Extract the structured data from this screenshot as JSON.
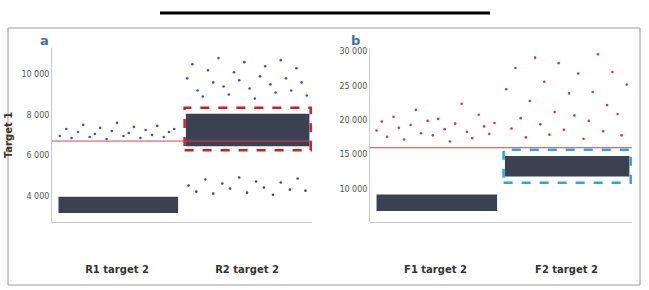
{
  "chart_data": [
    {
      "type": "scatter",
      "title": "a",
      "ylabel": "Target 1",
      "xlim": [
        0,
        2
      ],
      "xticks": [
        {
          "value": 0.5,
          "label": "R1 target 2"
        },
        {
          "value": 1.5,
          "label": "R2 target 2"
        }
      ],
      "ylim": [
        2700,
        11300
      ],
      "yticks": [
        {
          "value": 4000,
          "label": "4 000"
        },
        {
          "value": 6000,
          "label": "6 000"
        },
        {
          "value": 8000,
          "label": "8 000"
        },
        {
          "value": 10000,
          "label": "10 000"
        }
      ],
      "threshold": {
        "value": 6700,
        "color": "#d0464a"
      },
      "clusters": [
        {
          "x": [
            0.05,
            0.97
          ],
          "y": [
            3150,
            3950
          ],
          "color": "#3c4152"
        },
        {
          "x": [
            1.03,
            1.98
          ],
          "y": [
            6450,
            8050
          ],
          "color": "#3c4152"
        }
      ],
      "boxes": [
        {
          "x": [
            1.02,
            1.99
          ],
          "y": [
            6250,
            8350
          ],
          "color": "#e3171c",
          "line_style": "dashed"
        }
      ],
      "series": [
        {
          "color": "#3b52d9",
          "marker": "circle",
          "x": [
            0.06,
            0.11,
            0.15,
            0.2,
            0.24,
            0.29,
            0.33,
            0.37,
            0.42,
            0.46,
            0.5,
            0.55,
            0.59,
            0.63,
            0.68,
            0.72,
            0.77,
            0.81,
            0.86,
            0.9,
            0.94
          ],
          "values": [
            6950,
            7300,
            6850,
            7150,
            7500,
            6900,
            7050,
            7350,
            6800,
            7200,
            7600,
            6950,
            7100,
            7400,
            6850,
            7250,
            7000,
            7450,
            6900,
            7150,
            7300
          ]
        },
        {
          "color": "#3b52d9",
          "marker": "circle",
          "x": [
            1.04,
            1.08,
            1.12,
            1.16,
            1.2,
            1.24,
            1.28,
            1.32,
            1.36,
            1.4,
            1.44,
            1.48,
            1.52,
            1.56,
            1.6,
            1.64,
            1.68,
            1.72,
            1.76,
            1.8,
            1.84,
            1.88,
            1.92,
            1.96
          ],
          "values": [
            9800,
            10500,
            9200,
            8900,
            10200,
            9600,
            10800,
            9400,
            9000,
            10100,
            9700,
            10600,
            9300,
            8800,
            9900,
            10400,
            9500,
            9100,
            10700,
            9800,
            9200,
            10300,
            9600,
            8950
          ]
        },
        {
          "color": "#4a4f60",
          "marker": "circle",
          "x": [
            1.05,
            1.11,
            1.18,
            1.24,
            1.31,
            1.37,
            1.44,
            1.5,
            1.57,
            1.63,
            1.7,
            1.76,
            1.83,
            1.89,
            1.95
          ],
          "values": [
            4500,
            4200,
            4800,
            4100,
            4600,
            4350,
            4900,
            4150,
            4700,
            4400,
            4050,
            4650,
            4300,
            4850,
            4250
          ]
        }
      ]
    },
    {
      "type": "scatter",
      "title": "b",
      "xlim": [
        0,
        2
      ],
      "xticks": [
        {
          "value": 0.5,
          "label": "F1 target 2"
        },
        {
          "value": 1.5,
          "label": "F2 target 2"
        }
      ],
      "ylim": [
        5200,
        30500
      ],
      "yticks": [
        {
          "value": 10000,
          "label": "10 000"
        },
        {
          "value": 15000,
          "label": "15 000"
        },
        {
          "value": 20000,
          "label": "20 000"
        },
        {
          "value": 25000,
          "label": "25 000"
        },
        {
          "value": 30000,
          "label": "30 000"
        }
      ],
      "threshold": {
        "value": 16000,
        "color": "#d0464a"
      },
      "clusters": [
        {
          "x": [
            0.05,
            0.97
          ],
          "y": [
            6800,
            9200
          ],
          "color": "#3c4152"
        },
        {
          "x": [
            1.03,
            1.98
          ],
          "y": [
            11800,
            14800
          ],
          "color": "#3c4152"
        }
      ],
      "boxes": [
        {
          "x": [
            1.02,
            1.99
          ],
          "y": [
            10900,
            15700
          ],
          "color": "#2aa8df",
          "line_style": "dashed"
        }
      ],
      "series": [
        {
          "color": "#d93a3a",
          "marker": "circle",
          "x": [
            0.05,
            0.09,
            0.13,
            0.18,
            0.22,
            0.26,
            0.31,
            0.35,
            0.39,
            0.44,
            0.48,
            0.52,
            0.57,
            0.61,
            0.65,
            0.7,
            0.74,
            0.78,
            0.83,
            0.87,
            0.91,
            0.95
          ],
          "values": [
            18500,
            19800,
            17600,
            20500,
            18900,
            17200,
            19300,
            21500,
            18100,
            19900,
            17800,
            20200,
            18700,
            16900,
            19500,
            22400,
            18300,
            17400,
            20800,
            19100,
            18000,
            19600
          ]
        },
        {
          "color": "#d93a3a",
          "marker": "circle",
          "x": [
            1.04,
            1.08,
            1.11,
            1.15,
            1.19,
            1.22,
            1.26,
            1.3,
            1.33,
            1.37,
            1.41,
            1.44,
            1.48,
            1.52,
            1.56,
            1.59,
            1.63,
            1.67,
            1.7,
            1.74,
            1.78,
            1.81,
            1.85,
            1.89,
            1.92,
            1.96
          ],
          "values": [
            24500,
            18800,
            27600,
            20300,
            17500,
            22800,
            29100,
            19400,
            25600,
            17900,
            21200,
            28300,
            18600,
            23900,
            20700,
            26800,
            17300,
            19900,
            24100,
            29600,
            18400,
            22200,
            27000,
            20900,
            17800,
            25200
          ]
        }
      ]
    }
  ]
}
